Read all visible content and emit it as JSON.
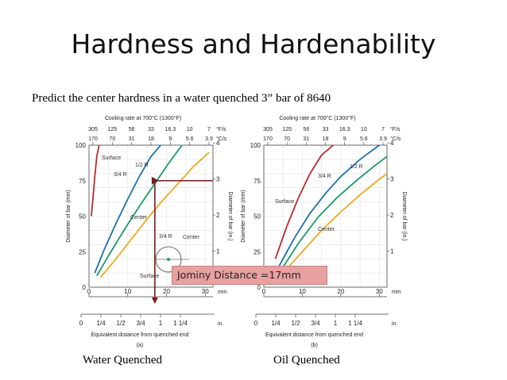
{
  "title": "Hardness and Hardenability",
  "prompt": "Predict the center hardness in a water quenched 3” bar of 8640",
  "captions": {
    "left": "Water Quenched",
    "right": "Oil Quenched"
  },
  "callout": "Jominy Distance =17mm",
  "colors": {
    "surface": "#c0282d",
    "three_quarter_r": "#1f6fb2",
    "half_r": "#1b9a6a",
    "center": "#f0a81e",
    "callout_bg": "#e8a0a0",
    "guide": "#7a1c1c"
  },
  "chart_data": [
    {
      "type": "line",
      "panel_label": "(a)",
      "top_axis_title": "Cooling rate at 700°C (1300°F)",
      "top_ticks_F": [
        "305",
        "125",
        "56",
        "33",
        "16.3",
        "10",
        "7"
      ],
      "top_ticks_C": [
        "170",
        "70",
        "31",
        "18",
        "9",
        "5.6",
        "3.9"
      ],
      "top_unit_F": "°F/s",
      "top_unit_C": "°C/s",
      "xlabel": "",
      "x_mm_ticks": [
        "0",
        "10",
        "20",
        "30"
      ],
      "x_mm_unit": "mm",
      "x_in_ticks": [
        "0",
        "1/4",
        "1/2",
        "3/4",
        "1",
        "1 1/4"
      ],
      "x_in_unit": "in.",
      "bottom_axis_title": "Equivalent distance from quenched end",
      "ylabel_left": "Diameter of bar (mm)",
      "ylabel_right": "Diameter of bar (in.)",
      "y_mm_ticks": [
        "0",
        "25",
        "50",
        "75",
        "100"
      ],
      "y_in_ticks": [
        "1",
        "2",
        "3",
        "4"
      ],
      "xlim": [
        0,
        32
      ],
      "ylim": [
        0,
        100
      ],
      "series": [
        {
          "name": "Surface",
          "x": [
            0.6,
            1.0,
            1.5,
            2.0,
            2.6
          ],
          "y": [
            50,
            62,
            78,
            92,
            100
          ]
        },
        {
          "name": "3/4 R",
          "x": [
            1.5,
            4,
            7,
            10,
            13,
            16,
            18.5
          ],
          "y": [
            10,
            27,
            45,
            62,
            78,
            92,
            100
          ]
        },
        {
          "name": "1/2 R",
          "x": [
            2,
            5,
            9,
            13,
            17,
            20.5,
            24
          ],
          "y": [
            8,
            22,
            40,
            57,
            73,
            87,
            100
          ]
        },
        {
          "name": "Center",
          "x": [
            3,
            7,
            11,
            15,
            19,
            23,
            27,
            31
          ],
          "y": [
            7,
            20,
            34,
            48,
            61,
            73,
            85,
            95
          ]
        }
      ],
      "labels": [
        "Surface",
        "1/2 R",
        "3/4 R",
        "Center",
        "3/4 R",
        "Center",
        "Surface"
      ],
      "guide": {
        "bar_diameter_mm": 75,
        "jominy_mm": 17
      }
    },
    {
      "type": "line",
      "panel_label": "(b)",
      "top_axis_title": "Cooling rate at 700°C (1300°F)",
      "top_ticks_F": [
        "305",
        "125",
        "56",
        "33",
        "16.3",
        "10",
        "7"
      ],
      "top_ticks_C": [
        "170",
        "70",
        "31",
        "18",
        "9",
        "5.6",
        "3.9"
      ],
      "top_unit_F": "°F/s",
      "top_unit_C": "°C/s",
      "xlabel": "",
      "x_mm_ticks": [
        "0",
        "10",
        "20",
        "30"
      ],
      "x_mm_unit": "mm",
      "x_in_ticks": [
        "0",
        "1/4",
        "1/2",
        "3/4",
        "1",
        "1 1/4"
      ],
      "x_in_unit": "in.",
      "bottom_axis_title": "Equivalent distance from quenched end",
      "ylabel_left": "Diameter of bar (mm)",
      "ylabel_right": "Diameter of bar (in.)",
      "y_mm_ticks": [
        "0",
        "25",
        "50",
        "75",
        "100"
      ],
      "y_in_ticks": [
        "1",
        "2",
        "3",
        "4"
      ],
      "xlim": [
        0,
        32
      ],
      "ylim": [
        0,
        100
      ],
      "series": [
        {
          "name": "Surface",
          "x": [
            3,
            6,
            9,
            12,
            15,
            18
          ],
          "y": [
            20,
            43,
            63,
            80,
            93,
            100
          ]
        },
        {
          "name": "3/4 R",
          "x": [
            4,
            8,
            12,
            16,
            20,
            25,
            30
          ],
          "y": [
            15,
            35,
            52,
            66,
            78,
            90,
            100
          ]
        },
        {
          "name": "1/2 R",
          "x": [
            4.5,
            9,
            14,
            19,
            24,
            29,
            32
          ],
          "y": [
            12,
            31,
            49,
            63,
            75,
            86,
            92
          ]
        },
        {
          "name": "Center",
          "x": [
            5,
            10,
            15,
            20,
            25,
            30,
            32
          ],
          "y": [
            10,
            25,
            40,
            53,
            65,
            76,
            80
          ]
        }
      ],
      "labels": [
        "3/4 R",
        "1/2 R",
        "Surface",
        "Center"
      ]
    }
  ]
}
